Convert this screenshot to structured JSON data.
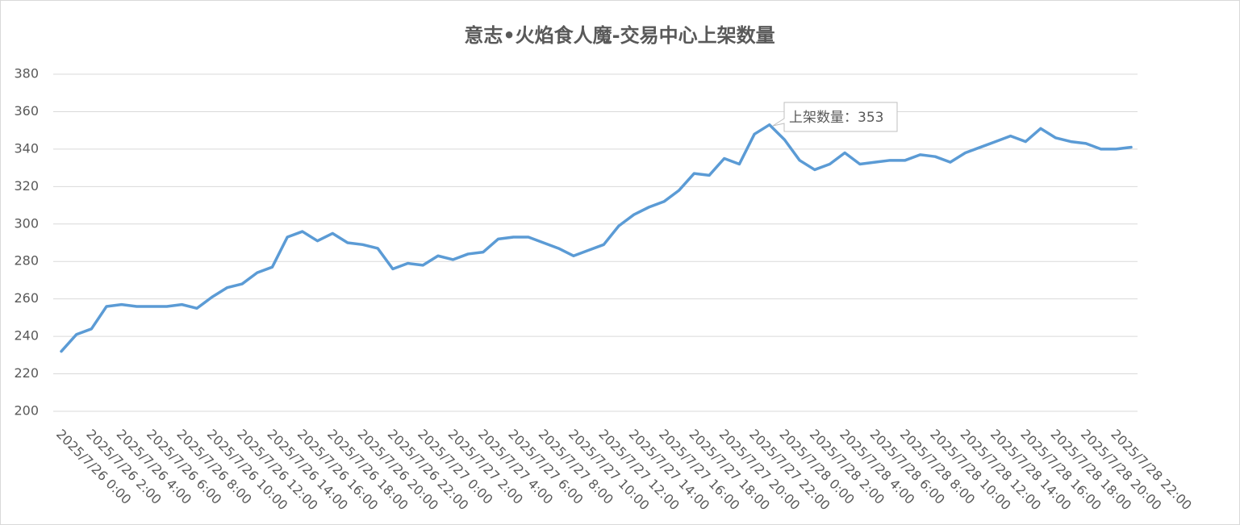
{
  "chart_data": {
    "type": "line",
    "title": "意志•火焰食人魔-交易中心上架数量",
    "categories": [
      "2025/7/26 0:00",
      null,
      "2025/7/26 2:00",
      null,
      "2025/7/26 4:00",
      null,
      "2025/7/26 6:00",
      null,
      "2025/7/26 8:00",
      null,
      "2025/7/26 10:00",
      null,
      "2025/7/26 12:00",
      null,
      "2025/7/26 14:00",
      null,
      "2025/7/26 16:00",
      null,
      "2025/7/26 18:00",
      null,
      "2025/7/26 20:00",
      null,
      "2025/7/26 22:00",
      null,
      "2025/7/27 0:00",
      null,
      "2025/7/27 2:00",
      null,
      "2025/7/27 4:00",
      null,
      "2025/7/27 6:00",
      null,
      "2025/7/27 8:00",
      null,
      "2025/7/27 10:00",
      null,
      "2025/7/27 12:00",
      null,
      "2025/7/27 14:00",
      null,
      "2025/7/27 16:00",
      null,
      "2025/7/27 18:00",
      null,
      "2025/7/27 20:00",
      null,
      "2025/7/27 22:00",
      null,
      "2025/7/28 0:00",
      null,
      "2025/7/28 2:00",
      null,
      "2025/7/28 4:00",
      null,
      "2025/7/28 6:00",
      null,
      "2025/7/28 8:00",
      null,
      "2025/7/28 10:00",
      null,
      "2025/7/28 12:00",
      null,
      "2025/7/28 14:00",
      null,
      "2025/7/28 16:00",
      null,
      "2025/7/28 18:00",
      null,
      "2025/7/28 20:00",
      null,
      "2025/7/28 22:00",
      null
    ],
    "values": [
      232,
      241,
      244,
      256,
      257,
      256,
      256,
      256,
      257,
      255,
      261,
      266,
      268,
      274,
      277,
      293,
      296,
      291,
      295,
      290,
      289,
      287,
      276,
      279,
      278,
      283,
      281,
      284,
      285,
      292,
      293,
      293,
      290,
      287,
      283,
      286,
      289,
      299,
      305,
      309,
      312,
      318,
      327,
      326,
      335,
      332,
      348,
      353,
      345,
      334,
      329,
      332,
      338,
      332,
      333,
      334,
      334,
      337,
      336,
      333,
      338,
      341,
      344,
      347,
      344,
      351,
      346,
      344,
      343,
      340,
      340,
      341
    ],
    "color": "#5b9bd5",
    "ylim": [
      200,
      380
    ],
    "yticks": [
      200,
      220,
      240,
      260,
      280,
      300,
      320,
      340,
      360,
      380
    ],
    "grid": true,
    "annotation": "上架数量：353"
  }
}
